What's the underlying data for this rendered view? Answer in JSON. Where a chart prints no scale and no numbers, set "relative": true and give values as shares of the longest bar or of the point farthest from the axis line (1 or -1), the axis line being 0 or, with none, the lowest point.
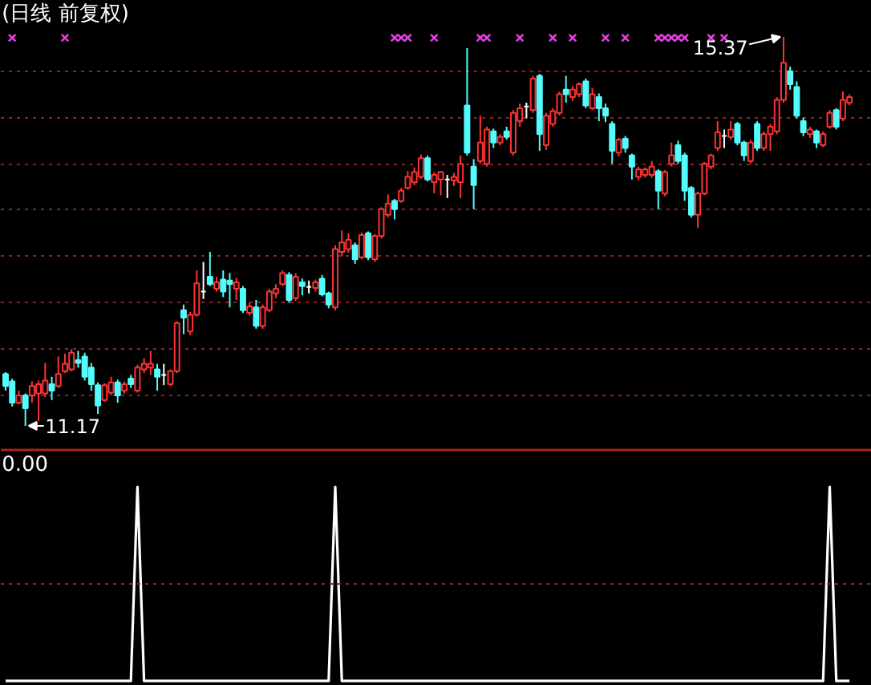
{
  "chart_data": [
    {
      "type": "candlestick",
      "title": "(日线 前复权)",
      "categories": [
        null,
        null,
        null,
        null,
        null,
        null,
        null,
        null,
        null,
        null,
        null,
        null,
        null,
        null,
        null,
        null,
        null,
        null,
        null,
        null,
        null,
        null,
        null,
        null,
        null,
        null,
        null,
        null,
        null,
        null,
        null,
        null,
        null,
        null,
        null,
        null,
        null,
        null,
        null,
        null,
        null,
        null,
        null,
        null,
        null,
        null,
        null,
        null,
        null,
        null,
        null,
        null,
        null,
        null,
        null,
        null,
        null,
        null,
        null,
        null,
        null,
        null,
        null,
        null,
        null,
        null,
        null,
        null,
        null,
        null,
        null,
        null,
        null,
        null,
        null,
        null,
        null,
        null,
        null,
        null,
        null,
        null,
        null,
        null,
        null,
        null,
        null,
        null,
        null,
        null,
        null,
        null,
        null,
        null,
        null,
        null,
        null,
        null,
        null,
        null,
        null,
        null,
        null,
        null,
        null,
        null,
        null,
        null,
        null,
        null,
        null,
        null,
        null,
        null,
        null,
        null,
        null,
        null,
        null,
        null,
        null,
        null,
        null,
        null,
        null,
        null,
        null,
        null,
        null
      ],
      "ohlc": [
        [
          11.73,
          11.75,
          11.55,
          11.6
        ],
        [
          11.65,
          11.68,
          11.38,
          11.42
        ],
        [
          11.42,
          11.55,
          11.4,
          11.5
        ],
        [
          11.5,
          11.52,
          11.17,
          11.36
        ],
        [
          11.5,
          11.65,
          11.42,
          11.6
        ],
        [
          11.52,
          11.66,
          11.22,
          11.62
        ],
        [
          11.52,
          11.85,
          11.48,
          11.66
        ],
        [
          11.62,
          11.7,
          11.45,
          11.55
        ],
        [
          11.6,
          11.92,
          11.58,
          11.73
        ],
        [
          11.76,
          11.95,
          11.74,
          11.84
        ],
        [
          11.78,
          12.0,
          11.76,
          11.96
        ],
        [
          11.88,
          11.98,
          11.8,
          11.85
        ],
        [
          11.92,
          11.96,
          11.66,
          11.7
        ],
        [
          11.8,
          11.85,
          11.55,
          11.62
        ],
        [
          11.61,
          11.64,
          11.3,
          11.39
        ],
        [
          11.45,
          11.63,
          11.43,
          11.61
        ],
        [
          11.53,
          11.7,
          11.5,
          11.64
        ],
        [
          11.64,
          11.67,
          11.42,
          11.5
        ],
        [
          11.55,
          11.65,
          11.52,
          11.62
        ],
        [
          11.68,
          11.72,
          11.58,
          11.62
        ],
        [
          11.55,
          11.83,
          11.53,
          11.8
        ],
        [
          11.78,
          11.9,
          11.74,
          11.84
        ],
        [
          11.8,
          11.98,
          11.72,
          11.84
        ],
        [
          11.78,
          11.84,
          11.55,
          11.7
        ],
        [
          11.72,
          11.84,
          11.61,
          11.72
        ],
        [
          11.62,
          11.78,
          11.6,
          11.76
        ],
        [
          11.76,
          12.3,
          11.74,
          12.28
        ],
        [
          12.42,
          12.48,
          12.16,
          12.34
        ],
        [
          12.19,
          12.4,
          12.15,
          12.37
        ],
        [
          12.37,
          12.85,
          12.35,
          12.71
        ],
        [
          12.62,
          12.94,
          12.54,
          12.62
        ],
        [
          12.78,
          13.05,
          12.68,
          12.7
        ],
        [
          12.65,
          12.78,
          12.62,
          12.72
        ],
        [
          12.75,
          12.85,
          12.56,
          12.62
        ],
        [
          12.74,
          12.82,
          12.45,
          12.7
        ],
        [
          12.65,
          12.77,
          12.53,
          12.72
        ],
        [
          12.65,
          12.68,
          12.39,
          12.42
        ],
        [
          12.39,
          12.5,
          12.36,
          12.46
        ],
        [
          12.45,
          12.53,
          12.22,
          12.25
        ],
        [
          12.25,
          12.48,
          12.22,
          12.45
        ],
        [
          12.42,
          12.65,
          12.4,
          12.62
        ],
        [
          12.6,
          12.7,
          12.55,
          12.65
        ],
        [
          12.7,
          12.85,
          12.68,
          12.82
        ],
        [
          12.8,
          12.83,
          12.5,
          12.53
        ],
        [
          12.55,
          12.82,
          12.52,
          12.78
        ],
        [
          12.72,
          12.76,
          12.58,
          12.68
        ],
        [
          12.67,
          12.74,
          12.6,
          12.67
        ],
        [
          12.66,
          12.75,
          12.62,
          12.72
        ],
        [
          12.76,
          12.8,
          12.57,
          12.59
        ],
        [
          12.6,
          12.62,
          12.44,
          12.48
        ],
        [
          12.45,
          13.12,
          12.42,
          13.08
        ],
        [
          13.05,
          13.28,
          13.0,
          13.15
        ],
        [
          13.08,
          13.25,
          13.04,
          13.18
        ],
        [
          13.12,
          13.15,
          12.92,
          12.97
        ],
        [
          12.99,
          13.26,
          12.97,
          13.23
        ],
        [
          13.25,
          13.27,
          12.96,
          12.99
        ],
        [
          12.97,
          13.24,
          12.94,
          13.22
        ],
        [
          13.22,
          13.53,
          13.19,
          13.51
        ],
        [
          13.45,
          13.67,
          13.42,
          13.57
        ],
        [
          13.6,
          13.62,
          13.4,
          13.51
        ],
        [
          13.6,
          13.74,
          13.58,
          13.71
        ],
        [
          13.74,
          13.92,
          13.72,
          13.86
        ],
        [
          13.8,
          13.96,
          13.77,
          13.91
        ],
        [
          13.86,
          14.1,
          13.84,
          14.06
        ],
        [
          14.06,
          14.09,
          13.81,
          13.83
        ],
        [
          13.8,
          13.91,
          13.68,
          13.88
        ],
        [
          13.83,
          13.92,
          13.66,
          13.91
        ],
        [
          13.83,
          13.88,
          13.63,
          13.83
        ],
        [
          13.82,
          13.9,
          13.76,
          13.86
        ],
        [
          13.8,
          14.09,
          13.63,
          14.0
        ],
        [
          14.63,
          15.25,
          14.09,
          14.12
        ],
        [
          13.97,
          14.05,
          13.51,
          13.77
        ],
        [
          14.03,
          14.52,
          14.0,
          14.23
        ],
        [
          14.0,
          14.4,
          13.97,
          14.37
        ],
        [
          14.35,
          14.38,
          14.17,
          14.23
        ],
        [
          14.23,
          14.32,
          14.2,
          14.29
        ],
        [
          14.35,
          14.4,
          14.26,
          14.29
        ],
        [
          14.12,
          14.58,
          14.09,
          14.55
        ],
        [
          14.46,
          14.65,
          14.4,
          14.6
        ],
        [
          14.62,
          14.66,
          14.49,
          14.62
        ],
        [
          14.58,
          14.95,
          14.55,
          14.92
        ],
        [
          14.95,
          14.97,
          14.14,
          14.32
        ],
        [
          14.2,
          14.55,
          14.15,
          14.52
        ],
        [
          14.43,
          14.6,
          14.4,
          14.57
        ],
        [
          14.55,
          14.78,
          14.52,
          14.75
        ],
        [
          14.8,
          14.95,
          14.66,
          14.75
        ],
        [
          14.72,
          14.84,
          14.68,
          14.8
        ],
        [
          14.75,
          14.88,
          14.72,
          14.86
        ],
        [
          14.89,
          14.92,
          14.6,
          14.63
        ],
        [
          14.6,
          14.82,
          14.58,
          14.75
        ],
        [
          14.72,
          14.76,
          14.46,
          14.6
        ],
        [
          14.6,
          14.65,
          14.45,
          14.52
        ],
        [
          14.43,
          14.46,
          14.0,
          14.14
        ],
        [
          14.12,
          14.28,
          14.08,
          14.26
        ],
        [
          14.27,
          14.3,
          14.12,
          14.17
        ],
        [
          14.09,
          14.11,
          13.83,
          13.97
        ],
        [
          13.86,
          13.97,
          13.82,
          13.94
        ],
        [
          13.88,
          13.96,
          13.85,
          13.94
        ],
        [
          13.88,
          14.03,
          13.85,
          13.97
        ],
        [
          13.92,
          13.94,
          13.51,
          13.71
        ],
        [
          13.68,
          13.93,
          13.65,
          13.91
        ],
        [
          14.0,
          14.23,
          13.97,
          14.09
        ],
        [
          14.2,
          14.25,
          14.0,
          14.03
        ],
        [
          14.09,
          14.12,
          13.6,
          13.71
        ],
        [
          13.74,
          13.76,
          13.42,
          13.45
        ],
        [
          13.45,
          13.7,
          13.31,
          13.68
        ],
        [
          13.68,
          14.02,
          13.66,
          14.0
        ],
        [
          13.97,
          14.11,
          13.94,
          14.09
        ],
        [
          14.17,
          14.46,
          14.14,
          14.34
        ],
        [
          14.3,
          14.37,
          14.17,
          14.3
        ],
        [
          14.29,
          14.46,
          14.26,
          14.37
        ],
        [
          14.43,
          14.45,
          14.2,
          14.23
        ],
        [
          14.23,
          14.25,
          14.03,
          14.09
        ],
        [
          14.03,
          14.26,
          14.0,
          14.23
        ],
        [
          14.43,
          14.46,
          14.14,
          14.17
        ],
        [
          14.17,
          14.35,
          14.14,
          14.32
        ],
        [
          14.32,
          14.43,
          14.14,
          14.4
        ],
        [
          14.35,
          14.72,
          14.32,
          14.69
        ],
        [
          14.69,
          15.37,
          14.66,
          15.09
        ],
        [
          15.0,
          15.05,
          14.8,
          14.86
        ],
        [
          14.83,
          14.89,
          14.49,
          14.52
        ],
        [
          14.46,
          14.5,
          14.3,
          14.34
        ],
        [
          14.32,
          14.4,
          14.28,
          14.37
        ],
        [
          14.35,
          14.37,
          14.17,
          14.23
        ],
        [
          14.2,
          14.35,
          14.18,
          14.32
        ],
        [
          14.4,
          14.58,
          14.38,
          14.55
        ],
        [
          14.58,
          14.6,
          14.37,
          14.4
        ],
        [
          14.49,
          14.78,
          14.46,
          14.69
        ],
        [
          14.66,
          14.75,
          14.63,
          14.72
        ]
      ],
      "colors": [
        "#54fcfc",
        "#54fcfc",
        "#ff3232",
        "#54fcfc",
        "#ff3232",
        "#ff3232",
        "#ff3232",
        "#54fcfc",
        "#ff3232",
        "#ff3232",
        "#ff3232",
        "#54fcfc",
        "#54fcfc",
        "#54fcfc",
        "#54fcfc",
        "#ff3232",
        "#ff3232",
        "#54fcfc",
        "#ff3232",
        "#54fcfc",
        "#ff3232",
        "#ff3232",
        "#ff3232",
        "#54fcfc",
        "#ffffff",
        "#ff3232",
        "#ff3232",
        "#54fcfc",
        "#ff3232",
        "#ff3232",
        "#ffffff",
        "#54fcfc",
        "#ff3232",
        "#54fcfc",
        "#54fcfc",
        "#ff3232",
        "#54fcfc",
        "#ff3232",
        "#54fcfc",
        "#ff3232",
        "#ff3232",
        "#ff3232",
        "#ff3232",
        "#54fcfc",
        "#ff3232",
        "#54fcfc",
        "#ffffff",
        "#ff3232",
        "#54fcfc",
        "#54fcfc",
        "#ff3232",
        "#ff3232",
        "#ff3232",
        "#54fcfc",
        "#ff3232",
        "#54fcfc",
        "#ff3232",
        "#ff3232",
        "#ff3232",
        "#54fcfc",
        "#ff3232",
        "#ff3232",
        "#ff3232",
        "#ff3232",
        "#54fcfc",
        "#ff3232",
        "#ff3232",
        "#ffffff",
        "#ff3232",
        "#ff3232",
        "#54fcfc",
        "#54fcfc",
        "#ff3232",
        "#ff3232",
        "#54fcfc",
        "#ff3232",
        "#54fcfc",
        "#ff3232",
        "#ff3232",
        "#ffffff",
        "#ff3232",
        "#54fcfc",
        "#ff3232",
        "#ff3232",
        "#ff3232",
        "#54fcfc",
        "#ff3232",
        "#ff3232",
        "#54fcfc",
        "#ff3232",
        "#54fcfc",
        "#54fcfc",
        "#54fcfc",
        "#ff3232",
        "#54fcfc",
        "#54fcfc",
        "#ff3232",
        "#ff3232",
        "#ff3232",
        "#54fcfc",
        "#ff3232",
        "#ff3232",
        "#54fcfc",
        "#54fcfc",
        "#54fcfc",
        "#ff3232",
        "#ff3232",
        "#ff3232",
        "#ff3232",
        "#ffffff",
        "#ff3232",
        "#54fcfc",
        "#54fcfc",
        "#ff3232",
        "#54fcfc",
        "#ff3232",
        "#ff3232",
        "#ff3232",
        "#ff3232",
        "#54fcfc",
        "#54fcfc",
        "#54fcfc",
        "#ff3232",
        "#54fcfc",
        "#ff3232",
        "#ff3232",
        "#54fcfc",
        "#ff3232",
        "#ff3232"
      ],
      "series": [
        {
          "type": "scatter",
          "color": "#e040e0",
          "marker": "cross",
          "values": [
            null,
            15.36,
            null,
            null,
            null,
            null,
            null,
            null,
            null,
            15.36,
            null,
            null,
            null,
            null,
            null,
            null,
            null,
            null,
            null,
            null,
            null,
            null,
            null,
            null,
            null,
            null,
            null,
            null,
            null,
            null,
            null,
            null,
            null,
            null,
            null,
            null,
            null,
            null,
            null,
            null,
            null,
            null,
            null,
            null,
            null,
            null,
            null,
            null,
            null,
            null,
            null,
            null,
            null,
            null,
            null,
            null,
            null,
            null,
            null,
            15.36,
            15.36,
            15.36,
            null,
            null,
            null,
            15.36,
            null,
            null,
            null,
            null,
            null,
            null,
            15.36,
            15.36,
            null,
            null,
            null,
            null,
            15.36,
            null,
            null,
            null,
            null,
            15.36,
            null,
            null,
            15.36,
            null,
            null,
            null,
            null,
            15.36,
            null,
            null,
            15.36,
            null,
            null,
            null,
            null,
            15.36,
            15.36,
            15.36,
            15.36,
            15.36,
            null,
            null,
            null,
            15.36,
            null,
            15.36,
            null,
            null,
            null,
            null,
            null,
            null,
            null,
            null,
            null,
            null,
            null,
            null,
            null,
            null,
            null,
            null,
            null,
            null,
            null
          ]
        }
      ],
      "ylim": [
        10.91,
        15.76
      ],
      "yticks": [
        {
          "value": 11.5,
          "label": null
        },
        {
          "value": 12,
          "label": null
        },
        {
          "value": 12.5,
          "label": null
        },
        {
          "value": 13,
          "label": null
        },
        {
          "value": 13.5,
          "label": null
        },
        {
          "value": 14,
          "label": null
        },
        {
          "value": 14.5,
          "label": null
        },
        {
          "value": 15,
          "label": null
        }
      ],
      "grid": "y",
      "tick_labels": false,
      "annotations": [
        {
          "text": "15.37",
          "y": 15.37
        },
        "11.17"
      ]
    },
    {
      "type": "line",
      "relative": true,
      "categories": [
        null,
        null,
        null,
        null,
        null,
        null,
        null,
        null,
        null,
        null,
        null,
        null,
        null,
        null,
        null,
        null,
        null,
        null,
        null,
        null,
        null,
        null,
        null,
        null,
        null,
        null,
        null,
        null,
        null,
        null,
        null,
        null,
        null,
        null,
        null,
        null,
        null,
        null,
        null,
        null,
        null,
        null,
        null,
        null,
        null,
        null,
        null,
        null,
        null,
        null,
        null,
        null,
        null,
        null,
        null,
        null,
        null,
        null,
        null,
        null,
        null,
        null,
        null,
        null,
        null,
        null,
        null,
        null,
        null,
        null,
        null,
        null,
        null,
        null,
        null,
        null,
        null,
        null,
        null,
        null,
        null,
        null,
        null,
        null,
        null,
        null,
        null,
        null,
        null,
        null,
        null,
        null,
        null,
        null,
        null,
        null,
        null,
        null,
        null,
        null,
        null,
        null,
        null,
        null,
        null,
        null,
        null,
        null,
        null,
        null,
        null,
        null,
        null,
        null,
        null,
        null,
        null,
        null,
        null,
        null,
        null,
        null,
        null,
        null,
        null,
        null,
        null,
        null,
        null
      ],
      "series": [
        {
          "color": "#ffffff",
          "values": [
            0,
            0,
            0,
            0,
            0,
            0,
            0,
            0,
            0,
            0,
            0,
            0,
            0,
            0,
            0,
            0,
            0,
            0,
            0,
            0,
            1,
            0,
            0,
            0,
            0,
            0,
            0,
            0,
            0,
            0,
            0,
            0,
            0,
            0,
            0,
            0,
            0,
            0,
            0,
            0,
            0,
            0,
            0,
            0,
            0,
            0,
            0,
            0,
            0,
            0,
            1,
            0,
            0,
            0,
            0,
            0,
            0,
            0,
            0,
            0,
            0,
            0,
            0,
            0,
            0,
            0,
            0,
            0,
            0,
            0,
            0,
            0,
            0,
            0,
            0,
            0,
            0,
            0,
            0,
            0,
            0,
            0,
            0,
            0,
            0,
            0,
            0,
            0,
            0,
            0,
            0,
            0,
            0,
            0,
            0,
            0,
            0,
            0,
            0,
            0,
            0,
            0,
            0,
            0,
            0,
            0,
            0,
            0,
            0,
            0,
            0,
            0,
            0,
            0,
            0,
            0,
            0,
            0,
            0,
            0,
            0,
            0,
            0,
            0,
            0,
            1,
            0,
            0,
            0
          ]
        }
      ],
      "ref_lines": [
        {
          "axis": "y",
          "value": 0.5,
          "color": "#8c2323",
          "line_style": "dotted"
        }
      ],
      "annotations": [
        "0.00"
      ]
    }
  ]
}
